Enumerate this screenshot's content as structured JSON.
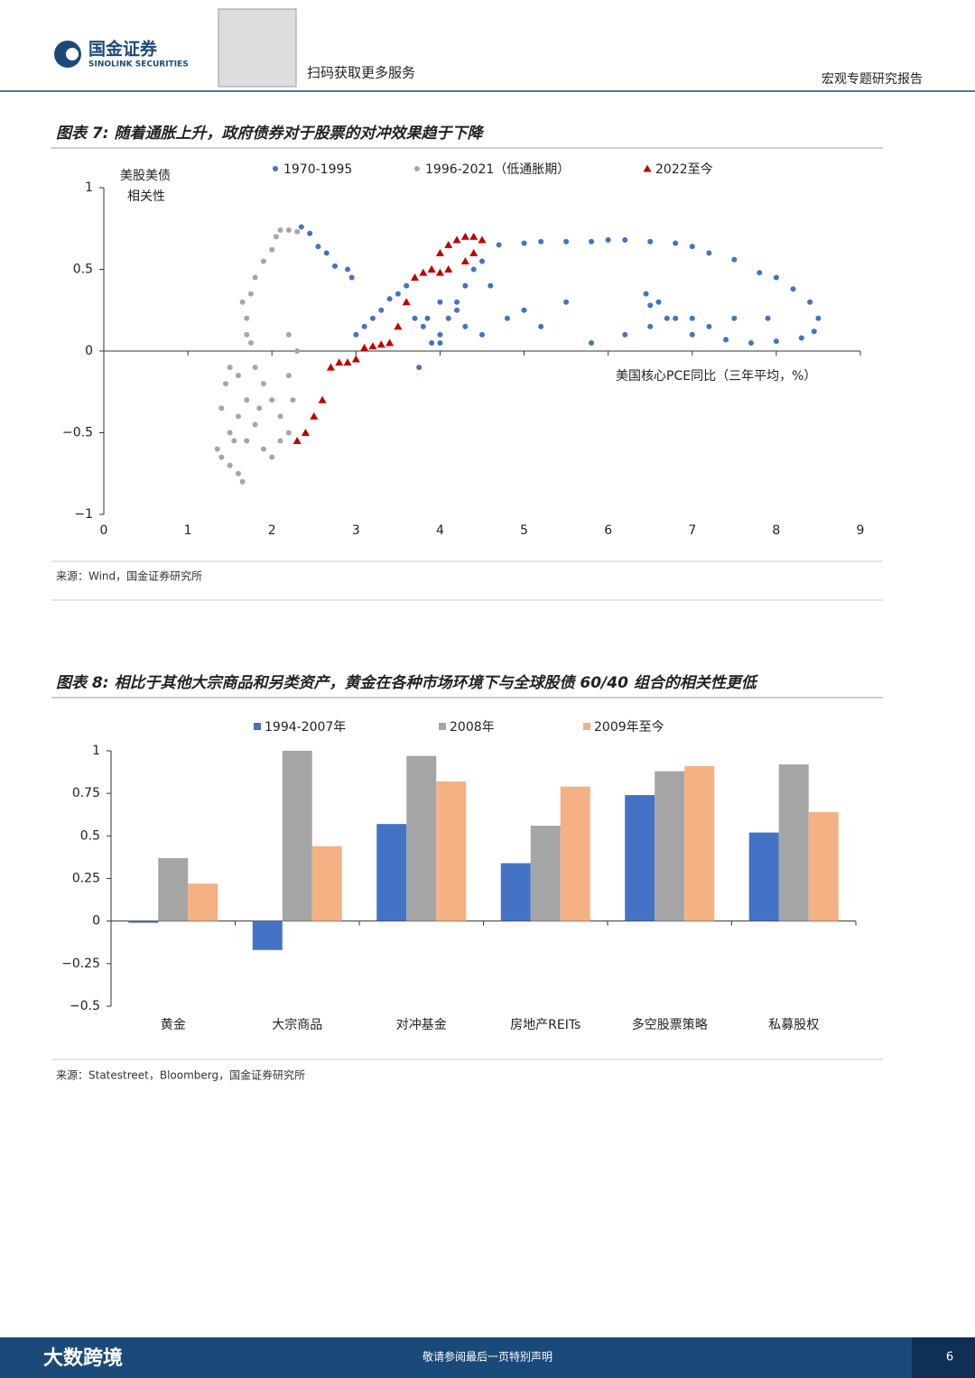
{
  "header": {
    "company": "国金证券",
    "company_en": "SINOLINK SECURITIES",
    "qr_text": "扫码获取更多服务",
    "report_type": "宏观专题研究报告"
  },
  "chart_data": [
    {
      "type": "scatter",
      "title": "图表 7: 随着通胀上升，政府债券对于股票的对冲效果趋于下降",
      "y_label": [
        "美股美债",
        "相关性"
      ],
      "x_label": "美国核心PCE同比（三年平均，%）",
      "source": "来源：Wind，国金证券研究所",
      "xlim": [
        0,
        9
      ],
      "xticks": [
        0,
        1,
        2,
        3,
        4,
        5,
        6,
        7,
        8,
        9
      ],
      "ylim": [
        -1,
        1
      ],
      "yticks": [
        {
          "value": -1,
          "label": "−1"
        },
        {
          "value": -0.5,
          "label": "−0.5"
        },
        0,
        0.5,
        1
      ],
      "series": [
        {
          "name": "1970-1995",
          "color": "#4472c4",
          "marker": "circle",
          "x": [
            2.35,
            2.45,
            2.55,
            2.65,
            2.75,
            2.9,
            2.95,
            3.0,
            3.1,
            3.2,
            3.3,
            3.4,
            3.5,
            3.6,
            3.7,
            3.8,
            3.9,
            3.75,
            4.0,
            4.1,
            4.2,
            4.3,
            4.4,
            4.5,
            4.7,
            5.0,
            5.2,
            5.5,
            5.8,
            6.0,
            6.2,
            6.5,
            6.8,
            7.0,
            7.2,
            7.5,
            7.8,
            8.0,
            8.2,
            8.4,
            8.5,
            8.45,
            8.3,
            8.0,
            7.7,
            7.4,
            7.2,
            7.0,
            6.8,
            6.6,
            6.45,
            6.5,
            6.7,
            7.0,
            7.5,
            7.9,
            6.5,
            6.2,
            5.8,
            5.2,
            4.8,
            4.3,
            4.0,
            3.85,
            4.0,
            4.6,
            5.0,
            5.5,
            4.5,
            4.2
          ],
          "values": [
            0.76,
            0.72,
            0.64,
            0.6,
            0.52,
            0.5,
            0.45,
            0.1,
            0.15,
            0.2,
            0.25,
            0.32,
            0.35,
            0.4,
            0.2,
            0.15,
            0.05,
            -0.1,
            0.1,
            0.2,
            0.3,
            0.4,
            0.5,
            0.55,
            0.65,
            0.66,
            0.67,
            0.67,
            0.67,
            0.68,
            0.68,
            0.67,
            0.66,
            0.64,
            0.6,
            0.56,
            0.48,
            0.45,
            0.38,
            0.3,
            0.2,
            0.12,
            0.08,
            0.06,
            0.05,
            0.07,
            0.15,
            0.2,
            0.2,
            0.3,
            0.35,
            0.28,
            0.2,
            0.1,
            0.2,
            0.2,
            0.15,
            0.1,
            0.05,
            0.15,
            0.2,
            0.15,
            0.05,
            0.2,
            0.3,
            0.4,
            0.25,
            0.3,
            0.1,
            0.25
          ]
        },
        {
          "name": "1996-2021（低通胀期）",
          "color": "#a6a6a6",
          "marker": "circle",
          "x": [
            1.35,
            1.4,
            1.5,
            1.6,
            1.65,
            1.7,
            1.5,
            1.4,
            1.45,
            1.5,
            1.6,
            1.7,
            1.8,
            1.9,
            2.0,
            2.1,
            2.2,
            2.1,
            2.0,
            1.9,
            1.8,
            1.75,
            1.7,
            1.65,
            1.7,
            2.2,
            2.3,
            2.2,
            2.25,
            1.75,
            1.8,
            1.9,
            2.0,
            2.05,
            2.1,
            2.2,
            2.3,
            1.85,
            1.55,
            1.6
          ],
          "values": [
            -0.6,
            -0.65,
            -0.7,
            -0.75,
            -0.8,
            -0.55,
            -0.5,
            -0.35,
            -0.2,
            -0.1,
            -0.15,
            -0.3,
            -0.45,
            -0.6,
            -0.65,
            -0.55,
            -0.5,
            -0.4,
            -0.3,
            -0.2,
            -0.1,
            0.05,
            0.2,
            0.3,
            0.1,
            0.1,
            0.0,
            -0.15,
            -0.3,
            0.35,
            0.45,
            0.55,
            0.62,
            0.7,
            0.74,
            0.74,
            0.73,
            -0.35,
            -0.55,
            -0.4
          ]
        },
        {
          "name": "2022至今",
          "color": "#c00000",
          "marker": "triangle",
          "x": [
            2.3,
            2.4,
            2.5,
            2.6,
            2.7,
            2.8,
            2.9,
            3.0,
            3.1,
            3.2,
            3.3,
            3.4,
            3.5,
            3.6,
            3.7,
            3.8,
            3.9,
            4.0,
            4.1,
            4.2,
            4.3,
            4.4,
            4.5,
            4.4,
            4.3,
            4.1,
            4.0,
            3.9
          ],
          "values": [
            -0.55,
            -0.5,
            -0.4,
            -0.3,
            -0.1,
            -0.07,
            -0.07,
            -0.05,
            0.02,
            0.03,
            0.04,
            0.05,
            0.15,
            0.3,
            0.45,
            0.48,
            0.5,
            0.6,
            0.65,
            0.68,
            0.7,
            0.7,
            0.68,
            0.6,
            0.55,
            0.5,
            0.48,
            0.5
          ]
        }
      ]
    },
    {
      "type": "bar",
      "title": "图表 8: 相比于其他大宗商品和另类资产，黄金在各种市场环境下与全球股债 60/40 组合的相关性更低",
      "source": "来源：Statestreet，Bloomberg，国金证券研究所",
      "categories": [
        "黄金",
        "大宗商品",
        "对冲基金",
        "房地产REITs",
        "多空股票策略",
        "私募股权"
      ],
      "ylim": [
        -0.5,
        1
      ],
      "yticks": [
        {
          "value": -0.5,
          "label": "−0.5"
        },
        {
          "value": -0.25,
          "label": "−0.25"
        },
        0,
        0.25,
        0.5,
        0.75,
        1
      ],
      "series": [
        {
          "name": "1994-2007年",
          "color": "#4472c4",
          "values": [
            -0.01,
            -0.17,
            0.57,
            0.34,
            0.74,
            0.52
          ]
        },
        {
          "name": "2008年",
          "color": "#a5a5a5",
          "values": [
            0.37,
            1.0,
            0.97,
            0.56,
            0.88,
            0.92
          ]
        },
        {
          "name": "2009年至今",
          "color": "#f4b183",
          "values": [
            0.22,
            0.44,
            0.82,
            0.79,
            0.91,
            0.64
          ]
        }
      ]
    }
  ],
  "footer": {
    "watermark": "大数跨境",
    "notice": "敬请参阅最后一页特别声明",
    "page": "6"
  }
}
